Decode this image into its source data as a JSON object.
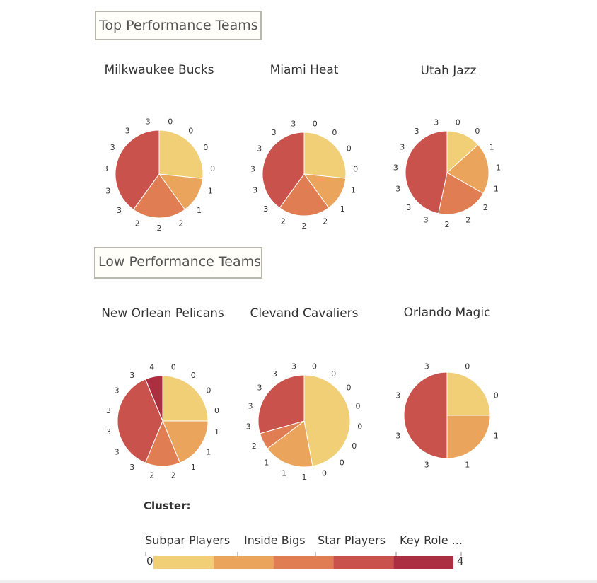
{
  "sections": {
    "top_title": "Top Performance Teams",
    "low_title": "Low Performance Teams"
  },
  "chart_data": [
    {
      "type": "pie",
      "title": "Milkwaukee Bucks",
      "labels": [
        "0",
        "0",
        "0",
        "0",
        "1",
        "1",
        "2",
        "2",
        "2",
        "3",
        "3",
        "3",
        "3",
        "3",
        "3"
      ],
      "clusters": [
        0,
        0,
        0,
        0,
        1,
        1,
        2,
        2,
        2,
        3,
        3,
        3,
        3,
        3,
        3
      ]
    },
    {
      "type": "pie",
      "title": "Miami Heat",
      "labels": [
        "0",
        "0",
        "0",
        "0",
        "1",
        "1",
        "2",
        "2",
        "2",
        "3",
        "3",
        "3",
        "3",
        "3",
        "3"
      ],
      "clusters": [
        0,
        0,
        0,
        0,
        1,
        1,
        2,
        2,
        2,
        3,
        3,
        3,
        3,
        3,
        3
      ]
    },
    {
      "type": "pie",
      "title": "Utah Jazz",
      "labels": [
        "0",
        "0",
        "1",
        "1",
        "1",
        "2",
        "2",
        "2",
        "3",
        "3",
        "3",
        "3",
        "3",
        "3",
        "3"
      ],
      "clusters": [
        0,
        0,
        1,
        1,
        1,
        2,
        2,
        2,
        3,
        3,
        3,
        3,
        3,
        3,
        3
      ]
    },
    {
      "type": "pie",
      "title": "New Orlean Pelicans",
      "labels": [
        "0",
        "0",
        "0",
        "0",
        "1",
        "1",
        "1",
        "2",
        "2",
        "3",
        "3",
        "3",
        "3",
        "3",
        "3",
        "4"
      ],
      "clusters": [
        0,
        0,
        0,
        0,
        1,
        1,
        1,
        2,
        2,
        3,
        3,
        3,
        3,
        3,
        3,
        4
      ]
    },
    {
      "type": "pie",
      "title": "Clevand Cavaliers",
      "labels": [
        "0",
        "0",
        "0",
        "0",
        "0",
        "0",
        "0",
        "0",
        "1",
        "1",
        "1",
        "2",
        "3",
        "3",
        "3",
        "3",
        "3"
      ],
      "clusters": [
        0,
        0,
        0,
        0,
        0,
        0,
        0,
        0,
        1,
        1,
        1,
        2,
        3,
        3,
        3,
        3,
        3
      ]
    },
    {
      "type": "pie",
      "title": "Orlando Magic",
      "labels": [
        "0",
        "0",
        "1",
        "1",
        "3",
        "3",
        "3",
        "3"
      ],
      "clusters": [
        0,
        0,
        1,
        1,
        3,
        3,
        3,
        3
      ]
    }
  ],
  "legend": {
    "title": "Cluster:",
    "categories": [
      "Subpar Players",
      "Inside Bigs",
      "Star Players",
      "Key Role ..."
    ],
    "min_label": "0",
    "max_label": "4",
    "colors": [
      "#f0cf76",
      "#eba45c",
      "#e07d52",
      "#c9524d",
      "#ac2e41"
    ]
  }
}
